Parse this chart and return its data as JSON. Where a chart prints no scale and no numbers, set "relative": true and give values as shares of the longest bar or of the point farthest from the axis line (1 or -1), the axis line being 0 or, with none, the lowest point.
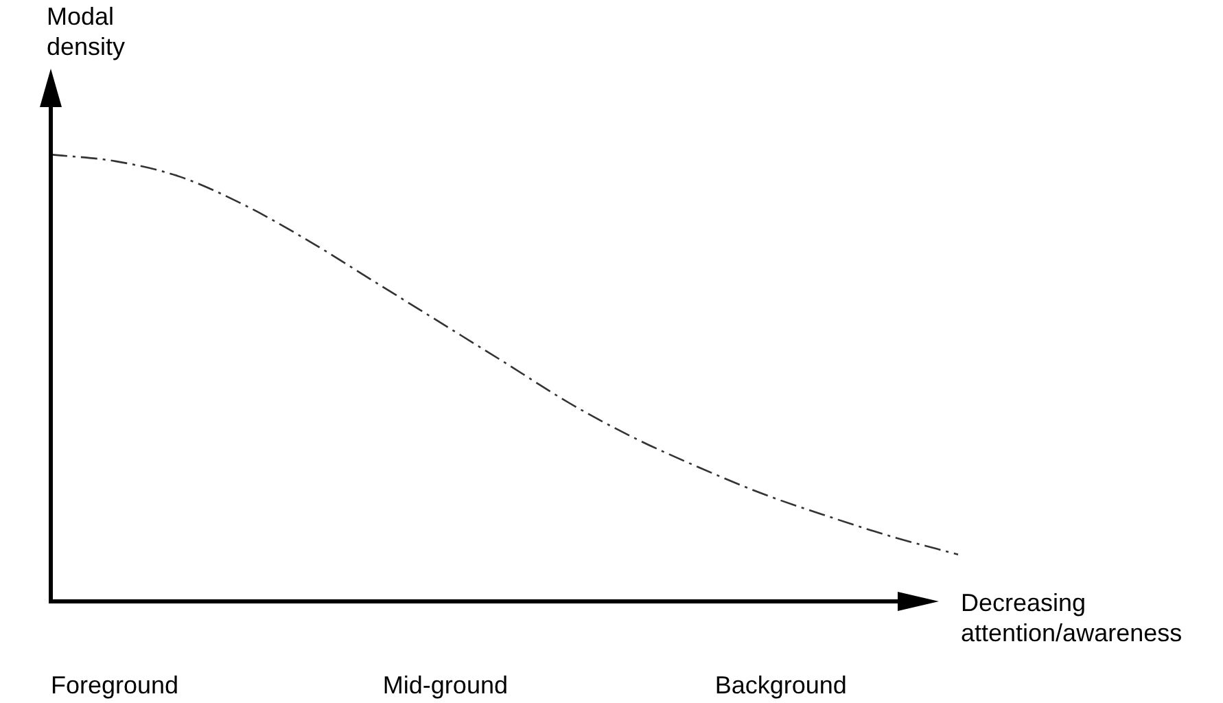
{
  "chart_data": {
    "type": "line",
    "relative": true,
    "xlabel": "Decreasing attention/awareness",
    "ylabel": "Modal density",
    "categories": [
      null,
      null,
      null,
      null,
      null,
      null,
      null,
      null,
      null,
      null,
      null,
      null,
      null,
      null,
      null
    ],
    "series": [
      {
        "color": "#333333",
        "values": [
          1.0,
          0.985,
          0.95,
          0.886,
          0.805,
          0.715,
          0.625,
          0.535,
          0.444,
          0.366,
          0.3,
          0.24,
          0.19,
          0.144,
          0.105
        ]
      }
    ],
    "annotations": [
      "Foreground",
      "Mid-ground",
      "Background"
    ],
    "line_style": "dashed",
    "marker": "none",
    "grid": false,
    "legend": false
  }
}
